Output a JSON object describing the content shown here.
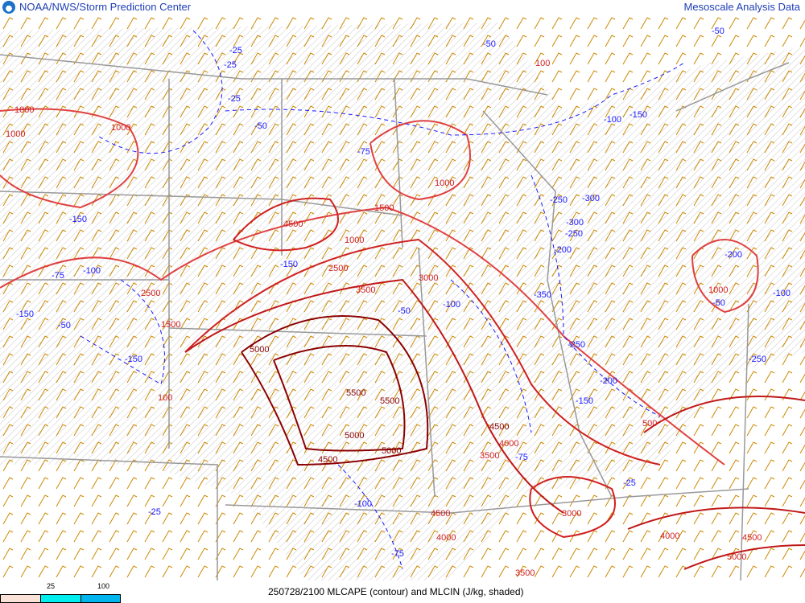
{
  "header": {
    "agency": "NOAA/NWS/Storm Prediction Center",
    "product_group": "Mesoscale Analysis Data",
    "logo_icon": "noaa-logo"
  },
  "footer": {
    "caption": "250728/2100 MLCAPE (contour) and MLCIN (J/kg, shaded)",
    "legend": {
      "ticks": [
        "25",
        "100"
      ],
      "colors": [
        "#fbe2d8",
        "#00eeee",
        "#00b4ee"
      ]
    }
  },
  "map": {
    "colors": {
      "cape_contour": "#d02020",
      "cape_high": "#8b0000",
      "cin_dashed": "#1a1aff",
      "wind_barbs": "#cc8800",
      "borders": "#999999"
    },
    "cape_labels": [
      "1000",
      "1000",
      "1000",
      "1500",
      "2500",
      "3000",
      "3500",
      "4500",
      "5000",
      "5500",
      "5500",
      "5000",
      "4500",
      "5000",
      "4500",
      "4000",
      "3500",
      "3000",
      "4000",
      "4500",
      "5000",
      "4500",
      "4000",
      "3500",
      "2500",
      "1500",
      "1000",
      "1000",
      "500",
      "1000",
      "100",
      "100"
    ],
    "cin_labels": [
      "-25",
      "-50",
      "-25",
      "-25",
      "-50",
      "-50",
      "-75",
      "-100",
      "-150",
      "-100",
      "-75",
      "-150",
      "-100",
      "-150",
      "-50",
      "-150",
      "-200",
      "-250",
      "-350",
      "-300",
      "-250",
      "-300",
      "-250",
      "-200",
      "-150",
      "-100",
      "-75",
      "-50",
      "-25",
      "-150",
      "-200",
      "-250",
      "-100",
      "-75",
      "-50",
      "-25"
    ]
  }
}
